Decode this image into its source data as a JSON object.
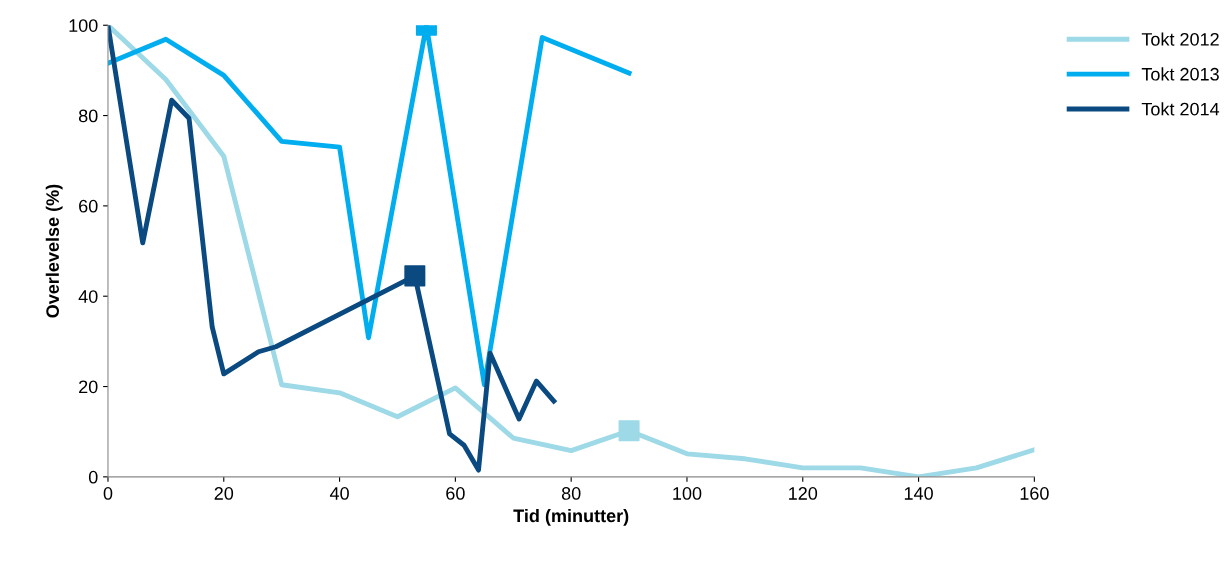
{
  "chart_data": {
    "type": "line",
    "xlabel": "Tid (minutter)",
    "ylabel": "Overlevelse (%)",
    "xlim": [
      0,
      160
    ],
    "xticks": [
      0,
      20,
      40,
      60,
      80,
      100,
      120,
      140,
      160
    ],
    "ylim": [
      0,
      100
    ],
    "yticks": [
      0,
      20,
      40,
      60,
      80,
      100
    ],
    "grid": false,
    "legend": "top right",
    "marker": "none",
    "line_style": "solid",
    "series": [
      {
        "name": "Tokt 2012",
        "color": "#9dd9e6",
        "x": [
          0,
          10,
          20,
          30,
          40,
          50,
          60,
          70,
          80,
          90,
          100,
          110,
          120,
          130,
          140,
          150,
          160
        ],
        "values": [
          100,
          88,
          71,
          20.4,
          18.6,
          13.3,
          19.7,
          8.6,
          5.8,
          10.2,
          5.1,
          4,
          2,
          2,
          0,
          2,
          6
        ]
      },
      {
        "name": "Tokt 2013",
        "color": "#00aeef",
        "x": [
          0,
          10,
          20,
          30,
          40,
          45,
          55,
          65,
          75,
          90
        ],
        "values": [
          91.6,
          96.9,
          88.9,
          74.3,
          73,
          30.8,
          100,
          20.4,
          97.3,
          89.4
        ]
      },
      {
        "name": "Tokt 2014",
        "color": "#0a4a80",
        "x": [
          0,
          6,
          11,
          14,
          18,
          20,
          26,
          29,
          53,
          59,
          61.5,
          64,
          66,
          71,
          74,
          77
        ],
        "values": [
          100,
          51.8,
          83.4,
          79.4,
          33.2,
          22.8,
          27.7,
          28.8,
          44.5,
          9.5,
          7,
          1.5,
          27.4,
          12.8,
          21.2,
          16.8
        ]
      },
      {
        "type": "scatter",
        "marker": "square",
        "color": "#9dd9e6",
        "x": [
          90
        ],
        "values": [
          10.2
        ]
      },
      {
        "type": "scatter",
        "marker": "square",
        "color": "#00aeef",
        "x": [
          55
        ],
        "values": [
          100
        ]
      },
      {
        "type": "scatter",
        "marker": "square",
        "color": "#0a4a80",
        "x": [
          53
        ],
        "values": [
          44.5
        ]
      }
    ]
  }
}
